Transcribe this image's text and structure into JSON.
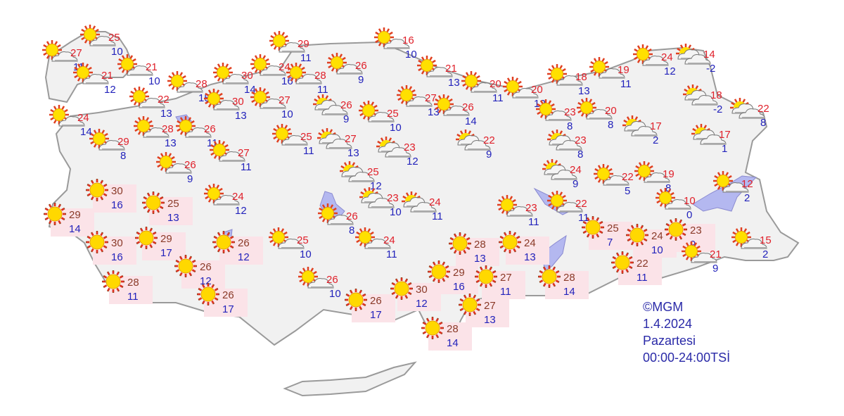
{
  "credit": "©MGM",
  "date": "1.4.2024",
  "day": "Pazartesi",
  "period": "00:00-24:00TSİ",
  "colors": {
    "high_temp": "#e0202a",
    "high_temp_sunny": "#8a3a28",
    "low_temp": "#2222bb",
    "land": "#f1f1f1",
    "water": "#b4b8f0",
    "sunny_highlight": "#fbe3e8"
  },
  "icon_types": {
    "sunny": "sun-icon",
    "partly": "partly-cloudy-icon",
    "mostly": "mostly-cloudy-icon"
  },
  "stations": [
    {
      "hi": "27",
      "lo": "11",
      "icon": "partly"
    },
    {
      "hi": "25",
      "lo": "10",
      "icon": "partly"
    },
    {
      "hi": "21",
      "lo": "12",
      "icon": "partly"
    },
    {
      "hi": "21",
      "lo": "10",
      "icon": "partly"
    },
    {
      "hi": "28",
      "lo": "15",
      "icon": "partly"
    },
    {
      "hi": "22",
      "lo": "13",
      "icon": "partly"
    },
    {
      "hi": "24",
      "lo": "14",
      "icon": "partly"
    },
    {
      "hi": "29",
      "lo": "8",
      "icon": "partly"
    },
    {
      "hi": "28",
      "lo": "13",
      "icon": "partly"
    },
    {
      "hi": "26",
      "lo": "11",
      "icon": "partly"
    },
    {
      "hi": "26",
      "lo": "9",
      "icon": "partly"
    },
    {
      "hi": "27",
      "lo": "11",
      "icon": "partly"
    },
    {
      "hi": "30",
      "lo": "14",
      "icon": "partly"
    },
    {
      "hi": "30",
      "lo": "13",
      "icon": "partly"
    },
    {
      "hi": "24",
      "lo": "16",
      "icon": "partly"
    },
    {
      "hi": "27",
      "lo": "10",
      "icon": "partly"
    },
    {
      "hi": "29",
      "lo": "11",
      "icon": "partly"
    },
    {
      "hi": "28",
      "lo": "11",
      "icon": "partly"
    },
    {
      "hi": "26",
      "lo": "9",
      "icon": "partly"
    },
    {
      "hi": "26",
      "lo": "9",
      "icon": "mostly"
    },
    {
      "hi": "25",
      "lo": "11",
      "icon": "partly"
    },
    {
      "hi": "27",
      "lo": "13",
      "icon": "mostly"
    },
    {
      "hi": "16",
      "lo": "10",
      "icon": "partly"
    },
    {
      "hi": "21",
      "lo": "13",
      "icon": "partly"
    },
    {
      "hi": "27",
      "lo": "13",
      "icon": "partly"
    },
    {
      "hi": "25",
      "lo": "10",
      "icon": "partly"
    },
    {
      "hi": "26",
      "lo": "14",
      "icon": "partly"
    },
    {
      "hi": "20",
      "lo": "11",
      "icon": "partly"
    },
    {
      "hi": "20",
      "lo": "12",
      "icon": "partly"
    },
    {
      "hi": "23",
      "lo": "12",
      "icon": "mostly"
    },
    {
      "hi": "22",
      "lo": "9",
      "icon": "mostly"
    },
    {
      "hi": "25",
      "lo": "12",
      "icon": "mostly"
    },
    {
      "hi": "23",
      "lo": "10",
      "icon": "mostly"
    },
    {
      "hi": "24",
      "lo": "11",
      "icon": "mostly"
    },
    {
      "hi": "26",
      "lo": "8",
      "icon": "partly"
    },
    {
      "hi": "25",
      "lo": "10",
      "icon": "partly"
    },
    {
      "hi": "24",
      "lo": "11",
      "icon": "partly"
    },
    {
      "hi": "26",
      "lo": "10",
      "icon": "partly"
    },
    {
      "hi": "18",
      "lo": "13",
      "icon": "partly"
    },
    {
      "hi": "19",
      "lo": "11",
      "icon": "partly"
    },
    {
      "hi": "24",
      "lo": "12",
      "icon": "partly"
    },
    {
      "hi": "14",
      "lo": "-2",
      "icon": "mostly"
    },
    {
      "hi": "23",
      "lo": "8",
      "icon": "partly"
    },
    {
      "hi": "20",
      "lo": "8",
      "icon": "partly"
    },
    {
      "hi": "23",
      "lo": "8",
      "icon": "mostly"
    },
    {
      "hi": "17",
      "lo": "2",
      "icon": "mostly"
    },
    {
      "hi": "18",
      "lo": "-2",
      "icon": "mostly"
    },
    {
      "hi": "22",
      "lo": "8",
      "icon": "mostly"
    },
    {
      "hi": "17",
      "lo": "1",
      "icon": "mostly"
    },
    {
      "hi": "24",
      "lo": "9",
      "icon": "mostly"
    },
    {
      "hi": "22",
      "lo": "5",
      "icon": "partly"
    },
    {
      "hi": "19",
      "lo": "8",
      "icon": "partly"
    },
    {
      "hi": "10",
      "lo": "0",
      "icon": "partly"
    },
    {
      "hi": "12",
      "lo": "2",
      "icon": "partly"
    },
    {
      "hi": "23",
      "lo": "11",
      "icon": "partly"
    },
    {
      "hi": "22",
      "lo": "11",
      "icon": "partly"
    },
    {
      "hi": "25",
      "lo": "7",
      "icon": "sunny"
    },
    {
      "hi": "24",
      "lo": "10",
      "icon": "sunny"
    },
    {
      "hi": "23",
      "lo": "9",
      "icon": "sunny"
    },
    {
      "hi": "21",
      "lo": "9",
      "icon": "partly"
    },
    {
      "hi": "15",
      "lo": "2",
      "icon": "partly"
    },
    {
      "hi": "22",
      "lo": "11",
      "icon": "sunny"
    },
    {
      "hi": "30",
      "lo": "16",
      "icon": "sunny"
    },
    {
      "hi": "25",
      "lo": "13",
      "icon": "sunny"
    },
    {
      "hi": "29",
      "lo": "14",
      "icon": "sunny"
    },
    {
      "hi": "24",
      "lo": "12",
      "icon": "partly"
    },
    {
      "hi": "30",
      "lo": "16",
      "icon": "sunny"
    },
    {
      "hi": "29",
      "lo": "17",
      "icon": "sunny"
    },
    {
      "hi": "26",
      "lo": "12",
      "icon": "sunny"
    },
    {
      "hi": "26",
      "lo": "12",
      "icon": "sunny"
    },
    {
      "hi": "28",
      "lo": "11",
      "icon": "sunny"
    },
    {
      "hi": "26",
      "lo": "17",
      "icon": "sunny"
    },
    {
      "hi": "26",
      "lo": "17",
      "icon": "sunny"
    },
    {
      "hi": "30",
      "lo": "12",
      "icon": "sunny"
    },
    {
      "hi": "29",
      "lo": "16",
      "icon": "sunny"
    },
    {
      "hi": "28",
      "lo": "13",
      "icon": "sunny"
    },
    {
      "hi": "24",
      "lo": "13",
      "icon": "sunny"
    },
    {
      "hi": "27",
      "lo": "11",
      "icon": "sunny"
    },
    {
      "hi": "27",
      "lo": "13",
      "icon": "sunny"
    },
    {
      "hi": "28",
      "lo": "14",
      "icon": "sunny"
    },
    {
      "hi": "28",
      "lo": "14",
      "icon": "sunny"
    }
  ]
}
